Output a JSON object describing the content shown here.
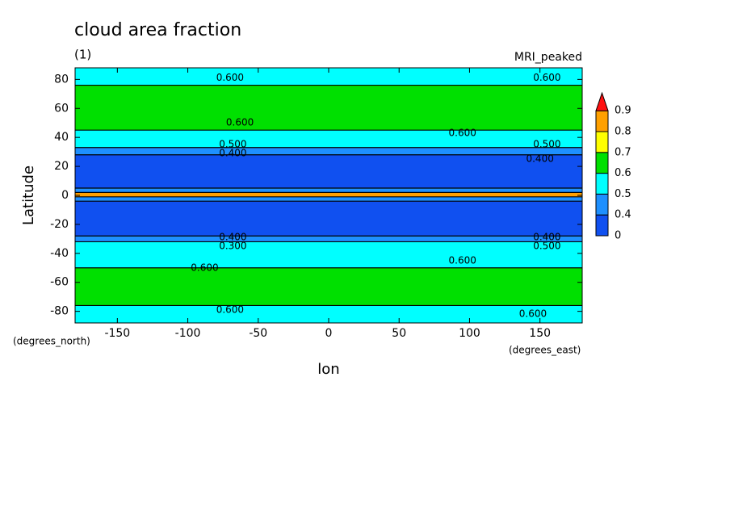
{
  "chart_data": {
    "type": "zonal-contour",
    "title": "cloud area fraction",
    "subtitle": "(1)",
    "model": "MRI_peaked",
    "x_label": "lon",
    "y_label": "Latitude",
    "x_units": "(degrees_east)",
    "y_units": "(degrees_north)",
    "xlim": [
      -180,
      180
    ],
    "ylim": [
      -88,
      88
    ],
    "xticks": [
      -150,
      -100,
      -50,
      0,
      50,
      100,
      150
    ],
    "yticks": [
      -80,
      -60,
      -40,
      -20,
      0,
      20,
      40,
      60,
      80
    ],
    "y_bins": [
      -88,
      -76,
      -50,
      -32,
      -28,
      -4,
      -1,
      2,
      5,
      28,
      33,
      45,
      76,
      88
    ],
    "values": [
      0.55,
      0.65,
      0.55,
      0.45,
      0.3,
      0.45,
      0.85,
      0.45,
      0.3,
      0.45,
      0.55,
      0.65,
      0.55
    ],
    "levels": [
      0,
      0.4,
      0.5,
      0.6,
      0.7,
      0.8,
      0.9
    ],
    "colors": [
      "#1050f0",
      "#1e90ff",
      "#00ffff",
      "#00e000",
      "#ffff00",
      "#ffa000",
      "#ff1010"
    ],
    "contour_labels": [
      {
        "text": "0.600",
        "lon": -70,
        "lat": 81
      },
      {
        "text": "0.600",
        "lon": 155,
        "lat": 81
      },
      {
        "text": "0.600",
        "lon": -63,
        "lat": 50
      },
      {
        "text": "0.600",
        "lon": 95,
        "lat": 43
      },
      {
        "text": "0.500",
        "lon": -68,
        "lat": 35
      },
      {
        "text": "0.400",
        "lon": -68,
        "lat": 29
      },
      {
        "text": "0.500",
        "lon": 155,
        "lat": 35
      },
      {
        "text": "0.400",
        "lon": 150,
        "lat": 25
      },
      {
        "text": "0.400",
        "lon": -68,
        "lat": -29
      },
      {
        "text": "0.300",
        "lon": -68,
        "lat": -35
      },
      {
        "text": "0.400",
        "lon": 155,
        "lat": -29
      },
      {
        "text": "0.500",
        "lon": 155,
        "lat": -35
      },
      {
        "text": "0.600",
        "lon": -88,
        "lat": -50
      },
      {
        "text": "0.600",
        "lon": 95,
        "lat": -45
      },
      {
        "text": "0.600",
        "lon": -70,
        "lat": -79
      },
      {
        "text": "0.600",
        "lon": 145,
        "lat": -82
      }
    ]
  }
}
